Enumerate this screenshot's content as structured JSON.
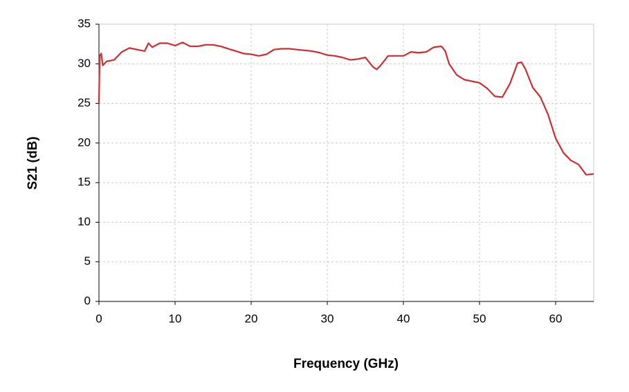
{
  "chart_data": {
    "type": "line",
    "x_label": "Frequency (GHz)",
    "y_label": "S21 (dB)",
    "x": [
      0,
      0.1,
      0.3,
      0.5,
      1,
      2,
      3,
      4,
      5,
      6,
      6.5,
      7,
      8,
      9,
      10,
      11,
      12,
      13,
      14,
      15,
      16,
      17,
      18,
      19,
      20,
      21,
      22,
      23,
      24,
      25,
      26,
      27,
      28,
      29,
      30,
      31,
      32,
      33,
      34,
      35,
      36,
      36.5,
      37,
      38,
      39,
      40,
      41,
      42,
      43,
      44,
      45,
      45.5,
      46,
      47,
      48,
      49,
      50,
      51,
      52,
      53,
      54,
      55,
      55.5,
      56,
      57,
      58,
      59,
      60,
      61,
      62,
      63,
      64,
      65
    ],
    "series": [
      {
        "name": "S21",
        "color": "#d42a2e",
        "values": [
          25,
          31,
          31.3,
          29.8,
          30.3,
          30.5,
          31.5,
          32,
          31.8,
          31.6,
          32.6,
          32.1,
          32.6,
          32.6,
          32.3,
          32.7,
          32.2,
          32.2,
          32.4,
          32.4,
          32.2,
          31.9,
          31.6,
          31.3,
          31.2,
          31,
          31.2,
          31.8,
          31.9,
          31.9,
          31.8,
          31.7,
          31.6,
          31.4,
          31.1,
          31,
          30.8,
          30.5,
          30.6,
          30.8,
          29.6,
          29.3,
          29.8,
          31,
          31,
          31,
          31.5,
          31.4,
          31.5,
          32.1,
          32.2,
          31.6,
          30,
          28.6,
          28,
          27.8,
          27.6,
          26.9,
          25.9,
          25.8,
          27.5,
          30.1,
          30.2,
          29.4,
          27,
          25.8,
          23.6,
          20.6,
          18.8,
          17.8,
          17.3,
          16,
          16.1
        ]
      }
    ],
    "xlim": [
      0,
      65
    ],
    "xticks": [
      0,
      10,
      20,
      30,
      40,
      50,
      60
    ],
    "ylim": [
      0,
      35
    ],
    "yticks": [
      0,
      5,
      10,
      15,
      20,
      25,
      30,
      35
    ],
    "grid": true
  }
}
